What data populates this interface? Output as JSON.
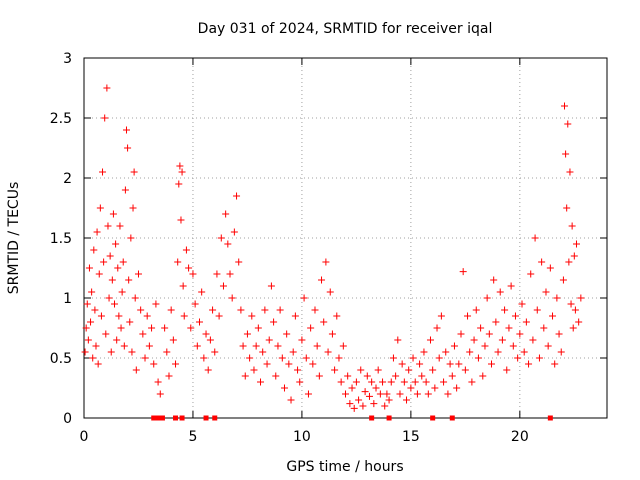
{
  "chart_data": {
    "type": "scatter",
    "title": "Day 031 of 2024, SRMTID for receiver iqal",
    "xlabel": "GPS time / hours",
    "ylabel": "SRMTID / TECUs",
    "xlim": [
      0,
      24
    ],
    "ylim": [
      0,
      3
    ],
    "xticks": [
      0,
      5,
      10,
      15,
      20
    ],
    "yticks": [
      0,
      0.5,
      1,
      1.5,
      2,
      2.5,
      3
    ],
    "xtick_labels": [
      "0",
      "5",
      "10",
      "15",
      "20"
    ],
    "ytick_labels": [
      "0",
      "0.5",
      "1",
      "1.5",
      "2",
      "2.5",
      "3"
    ],
    "grid": true,
    "marker": "+",
    "series": [
      {
        "name": "SRMTID",
        "color": "#ff0000",
        "points": [
          [
            0.05,
            0.55
          ],
          [
            0.1,
            0.75
          ],
          [
            0.15,
            0.95
          ],
          [
            0.2,
            0.65
          ],
          [
            0.25,
            1.25
          ],
          [
            0.3,
            0.8
          ],
          [
            0.35,
            1.05
          ],
          [
            0.4,
            0.5
          ],
          [
            0.45,
            1.4
          ],
          [
            0.5,
            0.9
          ],
          [
            0.55,
            0.6
          ],
          [
            0.6,
            1.55
          ],
          [
            0.65,
            0.45
          ],
          [
            0.7,
            1.2
          ],
          [
            0.75,
            1.75
          ],
          [
            0.8,
            0.85
          ],
          [
            0.85,
            2.05
          ],
          [
            0.9,
            1.3
          ],
          [
            0.95,
            2.5
          ],
          [
            1.0,
            0.7
          ],
          [
            1.05,
            2.75
          ],
          [
            1.1,
            1.6
          ],
          [
            1.15,
            1.0
          ],
          [
            1.2,
            1.35
          ],
          [
            1.25,
            0.55
          ],
          [
            1.3,
            1.15
          ],
          [
            1.35,
            1.7
          ],
          [
            1.4,
            0.95
          ],
          [
            1.45,
            1.45
          ],
          [
            1.5,
            0.65
          ],
          [
            1.55,
            1.25
          ],
          [
            1.6,
            0.85
          ],
          [
            1.65,
            1.6
          ],
          [
            1.7,
            0.75
          ],
          [
            1.75,
            1.05
          ],
          [
            1.8,
            1.3
          ],
          [
            1.85,
            0.6
          ],
          [
            1.9,
            1.9
          ],
          [
            1.95,
            2.4
          ],
          [
            2.0,
            2.25
          ],
          [
            2.05,
            1.15
          ],
          [
            2.1,
            0.8
          ],
          [
            2.15,
            1.5
          ],
          [
            2.2,
            0.55
          ],
          [
            2.25,
            1.75
          ],
          [
            2.3,
            2.05
          ],
          [
            2.35,
            1.0
          ],
          [
            2.4,
            0.4
          ],
          [
            2.5,
            1.2
          ],
          [
            2.6,
            0.9
          ],
          [
            2.7,
            0.7
          ],
          [
            2.8,
            0.5
          ],
          [
            2.9,
            0.85
          ],
          [
            3.0,
            0.6
          ],
          [
            3.1,
            0.75
          ],
          [
            3.2,
            0.45
          ],
          [
            3.3,
            0.95
          ],
          [
            3.4,
            0.3
          ],
          [
            3.5,
            0.2
          ],
          [
            3.7,
            0.75
          ],
          [
            3.8,
            0.55
          ],
          [
            3.9,
            0.35
          ],
          [
            4.0,
            0.9
          ],
          [
            4.1,
            0.65
          ],
          [
            4.2,
            0.45
          ],
          [
            4.3,
            1.3
          ],
          [
            4.35,
            1.95
          ],
          [
            4.4,
            2.1
          ],
          [
            4.45,
            1.65
          ],
          [
            4.5,
            2.05
          ],
          [
            4.55,
            1.1
          ],
          [
            4.6,
            0.85
          ],
          [
            4.7,
            1.4
          ],
          [
            4.8,
            1.25
          ],
          [
            4.9,
            0.75
          ],
          [
            5.0,
            1.2
          ],
          [
            5.1,
            0.95
          ],
          [
            5.2,
            0.6
          ],
          [
            5.3,
            0.8
          ],
          [
            5.4,
            1.05
          ],
          [
            5.5,
            0.5
          ],
          [
            5.6,
            0.7
          ],
          [
            5.7,
            0.4
          ],
          [
            5.8,
            0.65
          ],
          [
            5.9,
            0.9
          ],
          [
            6.0,
            0.55
          ],
          [
            6.1,
            1.2
          ],
          [
            6.2,
            0.85
          ],
          [
            6.3,
            1.5
          ],
          [
            6.4,
            1.1
          ],
          [
            6.5,
            1.7
          ],
          [
            6.6,
            1.45
          ],
          [
            6.7,
            1.2
          ],
          [
            6.8,
            1.0
          ],
          [
            6.9,
            1.55
          ],
          [
            7.0,
            1.85
          ],
          [
            7.1,
            1.3
          ],
          [
            7.2,
            0.9
          ],
          [
            7.3,
            0.6
          ],
          [
            7.4,
            0.35
          ],
          [
            7.5,
            0.7
          ],
          [
            7.6,
            0.5
          ],
          [
            7.7,
            0.85
          ],
          [
            7.8,
            0.4
          ],
          [
            7.9,
            0.6
          ],
          [
            8.0,
            0.75
          ],
          [
            8.1,
            0.3
          ],
          [
            8.2,
            0.55
          ],
          [
            8.3,
            0.9
          ],
          [
            8.4,
            0.45
          ],
          [
            8.5,
            0.65
          ],
          [
            8.6,
            1.1
          ],
          [
            8.7,
            0.8
          ],
          [
            8.8,
            0.35
          ],
          [
            8.9,
            0.6
          ],
          [
            9.0,
            0.9
          ],
          [
            9.1,
            0.5
          ],
          [
            9.2,
            0.25
          ],
          [
            9.3,
            0.7
          ],
          [
            9.4,
            0.45
          ],
          [
            9.5,
            0.15
          ],
          [
            9.6,
            0.55
          ],
          [
            9.7,
            0.85
          ],
          [
            9.8,
            0.4
          ],
          [
            9.9,
            0.3
          ],
          [
            10.0,
            0.65
          ],
          [
            10.1,
            1.0
          ],
          [
            10.2,
            0.5
          ],
          [
            10.3,
            0.2
          ],
          [
            10.4,
            0.75
          ],
          [
            10.5,
            0.45
          ],
          [
            10.6,
            0.9
          ],
          [
            10.7,
            0.6
          ],
          [
            10.8,
            0.35
          ],
          [
            10.9,
            1.15
          ],
          [
            11.0,
            0.8
          ],
          [
            11.1,
            1.3
          ],
          [
            11.2,
            0.55
          ],
          [
            11.3,
            1.05
          ],
          [
            11.4,
            0.7
          ],
          [
            11.5,
            0.4
          ],
          [
            11.6,
            0.85
          ],
          [
            11.7,
            0.5
          ],
          [
            11.8,
            0.3
          ],
          [
            11.9,
            0.6
          ],
          [
            12.0,
            0.2
          ],
          [
            12.1,
            0.35
          ],
          [
            12.2,
            0.12
          ],
          [
            12.3,
            0.25
          ],
          [
            12.4,
            0.08
          ],
          [
            12.5,
            0.3
          ],
          [
            12.6,
            0.15
          ],
          [
            12.7,
            0.4
          ],
          [
            12.8,
            0.1
          ],
          [
            12.9,
            0.22
          ],
          [
            13.0,
            0.35
          ],
          [
            13.1,
            0.18
          ],
          [
            13.2,
            0.3
          ],
          [
            13.3,
            0.12
          ],
          [
            13.4,
            0.25
          ],
          [
            13.5,
            0.4
          ],
          [
            13.6,
            0.2
          ],
          [
            13.7,
            0.3
          ],
          [
            13.8,
            0.1
          ],
          [
            13.9,
            0.2
          ],
          [
            14.0,
            0.15
          ],
          [
            14.1,
            0.3
          ],
          [
            14.2,
            0.5
          ],
          [
            14.3,
            0.35
          ],
          [
            14.4,
            0.65
          ],
          [
            14.5,
            0.2
          ],
          [
            14.6,
            0.45
          ],
          [
            14.7,
            0.3
          ],
          [
            14.8,
            0.15
          ],
          [
            14.9,
            0.4
          ],
          [
            15.0,
            0.25
          ],
          [
            15.1,
            0.5
          ],
          [
            15.2,
            0.3
          ],
          [
            15.3,
            0.2
          ],
          [
            15.4,
            0.45
          ],
          [
            15.5,
            0.35
          ],
          [
            15.6,
            0.55
          ],
          [
            15.7,
            0.3
          ],
          [
            15.8,
            0.2
          ],
          [
            15.9,
            0.65
          ],
          [
            16.0,
            0.4
          ],
          [
            16.1,
            0.25
          ],
          [
            16.2,
            0.75
          ],
          [
            16.3,
            0.5
          ],
          [
            16.4,
            0.85
          ],
          [
            16.5,
            0.3
          ],
          [
            16.6,
            0.55
          ],
          [
            16.7,
            0.2
          ],
          [
            16.8,
            0.45
          ],
          [
            16.9,
            0.35
          ],
          [
            17.0,
            0.6
          ],
          [
            17.1,
            0.25
          ],
          [
            17.2,
            0.45
          ],
          [
            17.3,
            0.7
          ],
          [
            17.4,
            1.22
          ],
          [
            17.5,
            0.4
          ],
          [
            17.6,
            0.85
          ],
          [
            17.7,
            0.55
          ],
          [
            17.8,
            0.3
          ],
          [
            17.9,
            0.65
          ],
          [
            18.0,
            0.9
          ],
          [
            18.1,
            0.5
          ],
          [
            18.2,
            0.75
          ],
          [
            18.3,
            0.35
          ],
          [
            18.4,
            0.6
          ],
          [
            18.5,
            1.0
          ],
          [
            18.6,
            0.7
          ],
          [
            18.7,
            0.45
          ],
          [
            18.8,
            1.15
          ],
          [
            18.9,
            0.8
          ],
          [
            19.0,
            0.55
          ],
          [
            19.1,
            1.05
          ],
          [
            19.2,
            0.65
          ],
          [
            19.3,
            0.9
          ],
          [
            19.4,
            0.4
          ],
          [
            19.5,
            0.75
          ],
          [
            19.6,
            1.1
          ],
          [
            19.7,
            0.6
          ],
          [
            19.8,
            0.85
          ],
          [
            19.9,
            0.5
          ],
          [
            20.0,
            0.7
          ],
          [
            20.1,
            0.95
          ],
          [
            20.2,
            0.55
          ],
          [
            20.3,
            0.8
          ],
          [
            20.4,
            0.45
          ],
          [
            20.5,
            1.2
          ],
          [
            20.6,
            0.65
          ],
          [
            20.7,
            1.5
          ],
          [
            20.8,
            0.9
          ],
          [
            20.9,
            0.5
          ],
          [
            21.0,
            1.3
          ],
          [
            21.1,
            0.75
          ],
          [
            21.2,
            1.05
          ],
          [
            21.3,
            0.6
          ],
          [
            21.4,
            1.25
          ],
          [
            21.5,
            0.85
          ],
          [
            21.6,
            0.45
          ],
          [
            21.7,
            1.0
          ],
          [
            21.8,
            0.7
          ],
          [
            21.9,
            0.55
          ],
          [
            22.0,
            1.15
          ],
          [
            22.05,
            2.6
          ],
          [
            22.1,
            2.2
          ],
          [
            22.15,
            1.75
          ],
          [
            22.2,
            2.45
          ],
          [
            22.25,
            1.3
          ],
          [
            22.3,
            2.05
          ],
          [
            22.35,
            0.95
          ],
          [
            22.4,
            1.6
          ],
          [
            22.45,
            0.75
          ],
          [
            22.5,
            1.35
          ],
          [
            22.55,
            0.9
          ],
          [
            22.6,
            1.45
          ],
          [
            22.7,
            0.8
          ],
          [
            22.8,
            1.0
          ]
        ]
      }
    ],
    "zero_line_times": [
      3.2,
      3.4,
      3.6,
      4.2,
      4.5,
      5.6,
      6.0,
      13.2,
      14.0,
      16.0,
      16.9,
      21.4
    ]
  }
}
